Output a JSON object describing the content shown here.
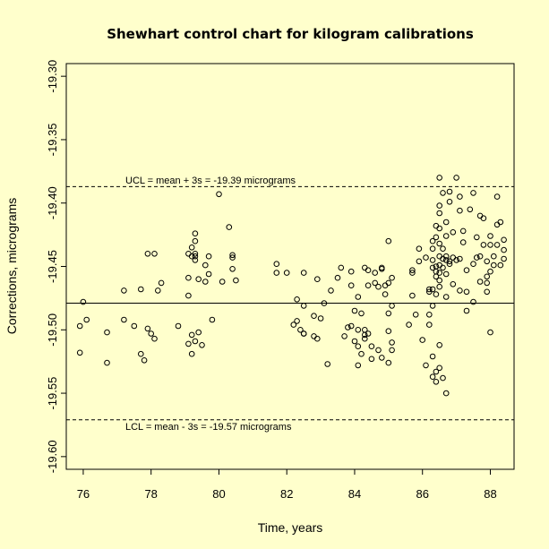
{
  "chart_data": {
    "type": "scatter",
    "title": "Shewhart control chart for kilogram calibrations",
    "xlabel": "Time, years",
    "ylabel": "Corrections, micrograms",
    "xlim": [
      75.5,
      88.7
    ],
    "ylim": [
      -19.61,
      -19.29
    ],
    "x_ticks": [
      76,
      78,
      80,
      82,
      84,
      86,
      88
    ],
    "x_tick_labels": [
      "76",
      "78",
      "80",
      "82",
      "84",
      "86",
      "88"
    ],
    "y_ticks": [
      -19.3,
      -19.35,
      -19.4,
      -19.45,
      -19.5,
      -19.55,
      -19.6
    ],
    "y_tick_labels": [
      "-19.30",
      "-19.35",
      "-19.40",
      "-19.45",
      "-19.50",
      "-19.55",
      "-19.60"
    ],
    "center_line": -19.479,
    "ucl": -19.387,
    "lcl": -19.571,
    "ucl_label": "UCL = mean + 3s = -19.39  micrograms",
    "lcl_label": "LCL = mean - 3s = -19.57  micrograms",
    "grid": false,
    "points": [
      [
        75.9,
        -19.497
      ],
      [
        75.9,
        -19.518
      ],
      [
        76.0,
        -19.478
      ],
      [
        76.1,
        -19.492
      ],
      [
        76.7,
        -19.526
      ],
      [
        76.7,
        -19.502
      ],
      [
        77.2,
        -19.492
      ],
      [
        77.2,
        -19.469
      ],
      [
        77.5,
        -19.497
      ],
      [
        77.7,
        -19.468
      ],
      [
        77.7,
        -19.519
      ],
      [
        77.8,
        -19.524
      ],
      [
        77.9,
        -19.499
      ],
      [
        77.9,
        -19.44
      ],
      [
        78.0,
        -19.503
      ],
      [
        78.1,
        -19.507
      ],
      [
        78.1,
        -19.44
      ],
      [
        78.2,
        -19.469
      ],
      [
        78.3,
        -19.463
      ],
      [
        78.8,
        -19.497
      ],
      [
        79.1,
        -19.44
      ],
      [
        79.1,
        -19.459
      ],
      [
        79.1,
        -19.473
      ],
      [
        79.1,
        -19.511
      ],
      [
        79.2,
        -19.504
      ],
      [
        79.2,
        -19.519
      ],
      [
        79.2,
        -19.435
      ],
      [
        79.2,
        -19.442
      ],
      [
        79.3,
        -19.43
      ],
      [
        79.3,
        -19.442
      ],
      [
        79.3,
        -19.44
      ],
      [
        79.3,
        -19.424
      ],
      [
        79.3,
        -19.509
      ],
      [
        79.3,
        -19.445
      ],
      [
        79.4,
        -19.46
      ],
      [
        79.4,
        -19.502
      ],
      [
        79.5,
        -19.512
      ],
      [
        79.6,
        -19.449
      ],
      [
        79.6,
        -19.462
      ],
      [
        79.7,
        -19.456
      ],
      [
        79.7,
        -19.442
      ],
      [
        79.8,
        -19.492
      ],
      [
        80.0,
        -19.393
      ],
      [
        80.1,
        -19.462
      ],
      [
        80.3,
        -19.419
      ],
      [
        80.4,
        -19.443
      ],
      [
        80.4,
        -19.441
      ],
      [
        80.4,
        -19.452
      ],
      [
        80.5,
        -19.461
      ],
      [
        81.7,
        -19.448
      ],
      [
        81.7,
        -19.455
      ],
      [
        82.0,
        -19.455
      ],
      [
        82.2,
        -19.496
      ],
      [
        82.3,
        -19.476
      ],
      [
        82.3,
        -19.493
      ],
      [
        82.4,
        -19.5
      ],
      [
        82.5,
        -19.503
      ],
      [
        82.5,
        -19.503
      ],
      [
        82.5,
        -19.455
      ],
      [
        82.5,
        -19.481
      ],
      [
        82.8,
        -19.489
      ],
      [
        82.8,
        -19.505
      ],
      [
        82.9,
        -19.507
      ],
      [
        82.9,
        -19.46
      ],
      [
        83.0,
        -19.491
      ],
      [
        83.1,
        -19.479
      ],
      [
        83.2,
        -19.527
      ],
      [
        83.3,
        -19.469
      ],
      [
        83.5,
        -19.459
      ],
      [
        83.6,
        -19.451
      ],
      [
        83.7,
        -19.505
      ],
      [
        83.8,
        -19.498
      ],
      [
        83.9,
        -19.454
      ],
      [
        83.9,
        -19.465
      ],
      [
        83.9,
        -19.497
      ],
      [
        84.0,
        -19.485
      ],
      [
        84.0,
        -19.509
      ],
      [
        84.1,
        -19.474
      ],
      [
        84.1,
        -19.513
      ],
      [
        84.1,
        -19.5
      ],
      [
        84.1,
        -19.528
      ],
      [
        84.2,
        -19.487
      ],
      [
        84.2,
        -19.519
      ],
      [
        84.3,
        -19.451
      ],
      [
        84.3,
        -19.5
      ],
      [
        84.3,
        -19.504
      ],
      [
        84.3,
        -19.507
      ],
      [
        84.4,
        -19.453
      ],
      [
        84.4,
        -19.465
      ],
      [
        84.4,
        -19.503
      ],
      [
        84.5,
        -19.513
      ],
      [
        84.5,
        -19.523
      ],
      [
        84.6,
        -19.463
      ],
      [
        84.6,
        -19.455
      ],
      [
        84.7,
        -19.466
      ],
      [
        84.7,
        -19.516
      ],
      [
        84.8,
        -19.522
      ],
      [
        84.8,
        -19.451
      ],
      [
        84.8,
        -19.452
      ],
      [
        84.9,
        -19.465
      ],
      [
        84.9,
        -19.472
      ],
      [
        85.0,
        -19.43
      ],
      [
        85.0,
        -19.526
      ],
      [
        85.0,
        -19.487
      ],
      [
        85.0,
        -19.501
      ],
      [
        85.0,
        -19.463
      ],
      [
        85.1,
        -19.459
      ],
      [
        85.1,
        -19.481
      ],
      [
        85.1,
        -19.51
      ],
      [
        85.1,
        -19.516
      ],
      [
        85.6,
        -19.496
      ],
      [
        85.7,
        -19.455
      ],
      [
        85.7,
        -19.453
      ],
      [
        85.7,
        -19.473
      ],
      [
        85.8,
        -19.488
      ],
      [
        85.9,
        -19.436
      ],
      [
        85.9,
        -19.446
      ],
      [
        86.0,
        -19.508
      ],
      [
        86.1,
        -19.443
      ],
      [
        86.1,
        -19.528
      ],
      [
        86.2,
        -19.468
      ],
      [
        86.2,
        -19.47
      ],
      [
        86.2,
        -19.496
      ],
      [
        86.2,
        -19.488
      ],
      [
        86.3,
        -19.43
      ],
      [
        86.3,
        -19.436
      ],
      [
        86.3,
        -19.445
      ],
      [
        86.3,
        -19.451
      ],
      [
        86.3,
        -19.468
      ],
      [
        86.3,
        -19.481
      ],
      [
        86.3,
        -19.521
      ],
      [
        86.3,
        -19.537
      ],
      [
        86.4,
        -19.418
      ],
      [
        86.4,
        -19.427
      ],
      [
        86.4,
        -19.45
      ],
      [
        86.4,
        -19.454
      ],
      [
        86.4,
        -19.458
      ],
      [
        86.4,
        -19.472
      ],
      [
        86.4,
        -19.541
      ],
      [
        86.4,
        -19.533
      ],
      [
        86.5,
        -19.38
      ],
      [
        86.5,
        -19.402
      ],
      [
        86.5,
        -19.408
      ],
      [
        86.5,
        -19.42
      ],
      [
        86.5,
        -19.432
      ],
      [
        86.5,
        -19.442
      ],
      [
        86.5,
        -19.449
      ],
      [
        86.5,
        -19.455
      ],
      [
        86.5,
        -19.461
      ],
      [
        86.5,
        -19.466
      ],
      [
        86.5,
        -19.512
      ],
      [
        86.5,
        -19.53
      ],
      [
        86.6,
        -19.392
      ],
      [
        86.6,
        -19.436
      ],
      [
        86.6,
        -19.444
      ],
      [
        86.6,
        -19.451
      ],
      [
        86.6,
        -19.538
      ],
      [
        86.7,
        -19.415
      ],
      [
        86.7,
        -19.426
      ],
      [
        86.7,
        -19.442
      ],
      [
        86.7,
        -19.445
      ],
      [
        86.7,
        -19.456
      ],
      [
        86.7,
        -19.474
      ],
      [
        86.7,
        -19.55
      ],
      [
        86.8,
        -19.391
      ],
      [
        86.8,
        -19.399
      ],
      [
        86.8,
        -19.446
      ],
      [
        86.8,
        -19.448
      ],
      [
        86.9,
        -19.423
      ],
      [
        86.9,
        -19.443
      ],
      [
        86.9,
        -19.464
      ],
      [
        87.0,
        -19.38
      ],
      [
        87.0,
        -19.445
      ],
      [
        87.1,
        -19.395
      ],
      [
        87.1,
        -19.406
      ],
      [
        87.1,
        -19.469
      ],
      [
        87.1,
        -19.444
      ],
      [
        87.2,
        -19.422
      ],
      [
        87.2,
        -19.431
      ],
      [
        87.3,
        -19.485
      ],
      [
        87.3,
        -19.453
      ],
      [
        87.3,
        -19.47
      ],
      [
        87.4,
        -19.405
      ],
      [
        87.5,
        -19.392
      ],
      [
        87.5,
        -19.448
      ],
      [
        87.5,
        -19.478
      ],
      [
        87.6,
        -19.427
      ],
      [
        87.6,
        -19.443
      ],
      [
        87.7,
        -19.41
      ],
      [
        87.7,
        -19.442
      ],
      [
        87.7,
        -19.462
      ],
      [
        87.8,
        -19.412
      ],
      [
        87.8,
        -19.433
      ],
      [
        87.9,
        -19.446
      ],
      [
        87.9,
        -19.458
      ],
      [
        87.9,
        -19.463
      ],
      [
        87.9,
        -19.47
      ],
      [
        88.0,
        -19.426
      ],
      [
        88.0,
        -19.433
      ],
      [
        88.0,
        -19.454
      ],
      [
        88.0,
        -19.502
      ],
      [
        88.1,
        -19.442
      ],
      [
        88.1,
        -19.449
      ],
      [
        88.2,
        -19.395
      ],
      [
        88.2,
        -19.417
      ],
      [
        88.2,
        -19.433
      ],
      [
        88.3,
        -19.449
      ],
      [
        88.3,
        -19.415
      ],
      [
        88.4,
        -19.429
      ],
      [
        88.4,
        -19.437
      ],
      [
        88.4,
        -19.444
      ]
    ]
  }
}
